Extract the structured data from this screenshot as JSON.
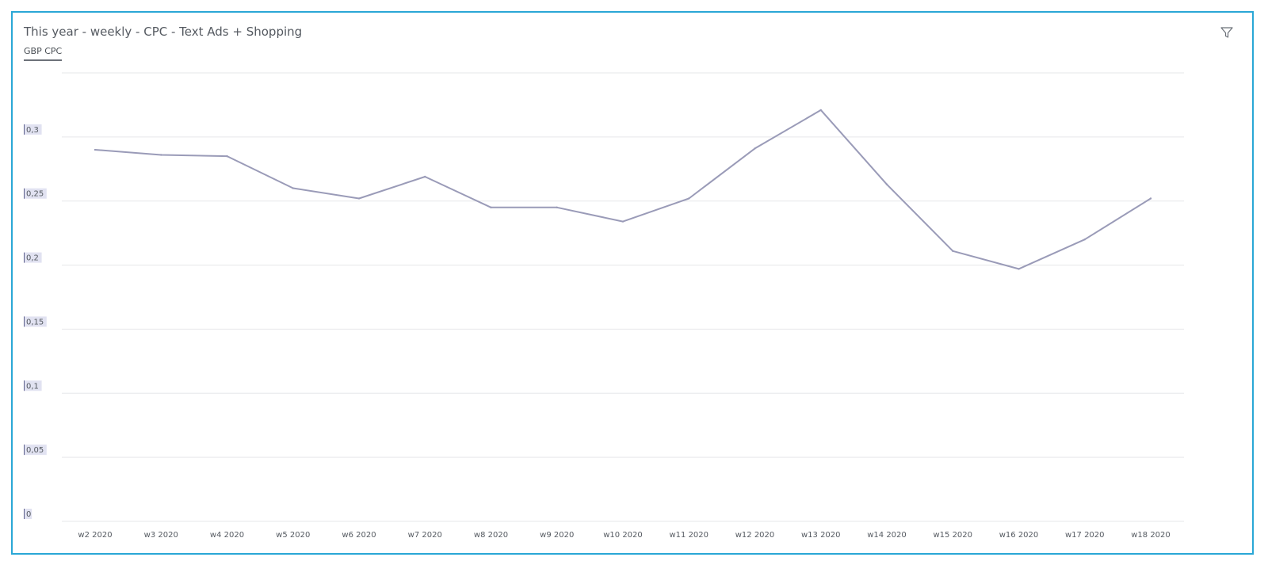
{
  "widget": {
    "title": "This year - weekly - CPC - Text Ads + Shopping",
    "tab_label": "GBP CPC",
    "filter_icon": "filter-icon"
  },
  "colors": {
    "border": "#2aa7d6",
    "line": "#9a9bb8",
    "grid": "#e6e7ea",
    "tick_highlight": "#c9cbe6"
  },
  "chart_data": {
    "type": "line",
    "categories": [
      "w2 2020",
      "w3 2020",
      "w4 2020",
      "w5 2020",
      "w6 2020",
      "w7 2020",
      "w8 2020",
      "w9 2020",
      "w10 2020",
      "w11 2020",
      "w12 2020",
      "w13 2020",
      "w14 2020",
      "w15 2020",
      "w16 2020",
      "w17 2020",
      "w18 2020"
    ],
    "series": [
      {
        "values": [
          0.29,
          0.286,
          0.285,
          0.26,
          0.252,
          0.269,
          0.245,
          0.245,
          0.234,
          0.252,
          0.291,
          0.321,
          0.263,
          0.211,
          0.197,
          0.22,
          0.252
        ]
      }
    ],
    "yticks": [
      "0",
      "0,05",
      "0,1",
      "0,15",
      "0,2",
      "0,25",
      "0,3"
    ],
    "ytick_values": [
      0,
      0.05,
      0.1,
      0.15,
      0.2,
      0.25,
      0.3
    ],
    "ylim": [
      0,
      0.35
    ],
    "grid": true,
    "legend": "none"
  }
}
